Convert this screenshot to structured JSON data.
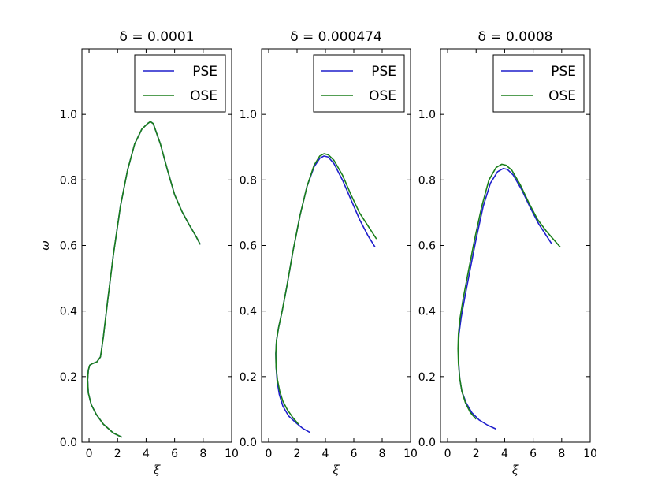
{
  "chart_data": [
    {
      "type": "line",
      "title": "δ = 0.0001",
      "xlabel": "ξ",
      "ylabel": "ω",
      "xlim": [
        -0.5,
        10
      ],
      "ylim": [
        0,
        1.2
      ],
      "xticks": [
        0,
        2,
        4,
        6,
        8,
        10
      ],
      "yticks": [
        0.0,
        0.2,
        0.4,
        0.6,
        0.8,
        1.0
      ],
      "xtick_labels": [
        "0",
        "2",
        "4",
        "6",
        "8",
        "10"
      ],
      "ytick_labels": [
        "0.0",
        "0.2",
        "0.4",
        "0.6",
        "0.8",
        "1.0"
      ],
      "legend": "top-right",
      "series": [
        {
          "name": "PSE",
          "color": "#1f1fcc",
          "x": [
            2.3,
            1.7,
            1.0,
            0.5,
            0.15,
            -0.05,
            -0.1,
            -0.05,
            0.05,
            0.25,
            0.55,
            0.8,
            1.0,
            1.3,
            1.7,
            2.2,
            2.7,
            3.2,
            3.7,
            4.1,
            4.3,
            4.5,
            5.0,
            5.5,
            6.0,
            6.5,
            7.0,
            7.5,
            7.8
          ],
          "y": [
            0.015,
            0.028,
            0.055,
            0.085,
            0.115,
            0.15,
            0.19,
            0.22,
            0.235,
            0.24,
            0.245,
            0.26,
            0.32,
            0.43,
            0.57,
            0.72,
            0.83,
            0.91,
            0.955,
            0.972,
            0.978,
            0.972,
            0.91,
            0.83,
            0.755,
            0.705,
            0.665,
            0.628,
            0.603
          ]
        },
        {
          "name": "OSE",
          "color": "#1a7f1a",
          "x": [
            2.3,
            1.7,
            1.0,
            0.5,
            0.15,
            -0.05,
            -0.1,
            -0.05,
            0.05,
            0.25,
            0.55,
            0.8,
            1.0,
            1.3,
            1.7,
            2.2,
            2.7,
            3.2,
            3.7,
            4.1,
            4.3,
            4.5,
            5.0,
            5.5,
            6.0,
            6.5,
            7.0,
            7.5,
            7.8
          ],
          "y": [
            0.015,
            0.028,
            0.055,
            0.085,
            0.115,
            0.15,
            0.19,
            0.22,
            0.235,
            0.24,
            0.245,
            0.26,
            0.32,
            0.43,
            0.57,
            0.72,
            0.83,
            0.91,
            0.955,
            0.972,
            0.978,
            0.972,
            0.91,
            0.83,
            0.755,
            0.705,
            0.665,
            0.628,
            0.603
          ]
        }
      ]
    },
    {
      "type": "line",
      "title": "δ = 0.000474",
      "xlabel": "ξ",
      "ylabel": "",
      "xlim": [
        -0.5,
        10
      ],
      "ylim": [
        0,
        1.2
      ],
      "xticks": [
        0,
        2,
        4,
        6,
        8,
        10
      ],
      "yticks": [
        0.0,
        0.2,
        0.4,
        0.6,
        0.8,
        1.0
      ],
      "xtick_labels": [
        "0",
        "2",
        "4",
        "6",
        "8",
        "10"
      ],
      "ytick_labels": [
        "0.0",
        "0.2",
        "0.4",
        "0.6",
        "0.8",
        "1.0"
      ],
      "legend": "top-right",
      "series": [
        {
          "name": "PSE",
          "color": "#1f1fcc",
          "x": [
            2.9,
            2.4,
            1.9,
            1.4,
            1.0,
            0.75,
            0.6,
            0.52,
            0.5,
            0.55,
            0.7,
            0.95,
            1.3,
            1.7,
            2.2,
            2.7,
            3.2,
            3.6,
            3.9,
            4.2,
            4.6,
            5.2,
            5.8,
            6.4,
            7.0,
            7.5
          ],
          "y": [
            0.03,
            0.042,
            0.06,
            0.08,
            0.11,
            0.145,
            0.185,
            0.23,
            0.27,
            0.31,
            0.35,
            0.4,
            0.48,
            0.58,
            0.69,
            0.78,
            0.84,
            0.866,
            0.873,
            0.87,
            0.85,
            0.8,
            0.74,
            0.68,
            0.63,
            0.595
          ]
        },
        {
          "name": "OSE",
          "color": "#1a7f1a",
          "x": [
            2.1,
            1.7,
            1.3,
            1.0,
            0.78,
            0.62,
            0.52,
            0.5,
            0.55,
            0.7,
            0.95,
            1.3,
            1.7,
            2.2,
            2.7,
            3.2,
            3.6,
            3.9,
            4.2,
            4.6,
            5.2,
            5.8,
            6.4,
            7.0,
            7.6
          ],
          "y": [
            0.055,
            0.075,
            0.1,
            0.125,
            0.155,
            0.19,
            0.23,
            0.27,
            0.31,
            0.35,
            0.4,
            0.48,
            0.58,
            0.69,
            0.78,
            0.845,
            0.873,
            0.88,
            0.877,
            0.86,
            0.815,
            0.755,
            0.7,
            0.66,
            0.62
          ]
        }
      ]
    },
    {
      "type": "line",
      "title": "δ = 0.0008",
      "xlabel": "ξ",
      "ylabel": "",
      "xlim": [
        -0.5,
        10
      ],
      "ylim": [
        0,
        1.2
      ],
      "xticks": [
        0,
        2,
        4,
        6,
        8,
        10
      ],
      "yticks": [
        0.0,
        0.2,
        0.4,
        0.6,
        0.8,
        1.0
      ],
      "xtick_labels": [
        "0",
        "2",
        "4",
        "6",
        "8",
        "10"
      ],
      "ytick_labels": [
        "0.0",
        "0.2",
        "0.4",
        "0.6",
        "0.8",
        "1.0"
      ],
      "legend": "top-right",
      "series": [
        {
          "name": "PSE",
          "color": "#1f1fcc",
          "x": [
            3.4,
            2.8,
            2.2,
            1.7,
            1.3,
            1.0,
            0.85,
            0.78,
            0.75,
            0.8,
            0.95,
            1.2,
            1.55,
            2.0,
            2.5,
            3.0,
            3.5,
            3.9,
            4.2,
            4.6,
            5.2,
            5.8,
            6.4,
            7.0,
            7.3
          ],
          "y": [
            0.04,
            0.052,
            0.068,
            0.09,
            0.12,
            0.155,
            0.195,
            0.24,
            0.285,
            0.33,
            0.38,
            0.44,
            0.52,
            0.62,
            0.72,
            0.79,
            0.825,
            0.835,
            0.832,
            0.815,
            0.77,
            0.715,
            0.665,
            0.625,
            0.605
          ]
        },
        {
          "name": "OSE",
          "color": "#1a7f1a",
          "x": [
            2.0,
            1.6,
            1.25,
            1.0,
            0.85,
            0.76,
            0.73,
            0.76,
            0.88,
            1.1,
            1.45,
            1.9,
            2.4,
            2.9,
            3.4,
            3.8,
            4.1,
            4.5,
            5.1,
            5.7,
            6.3,
            6.9,
            7.5,
            7.9
          ],
          "y": [
            0.07,
            0.09,
            0.12,
            0.155,
            0.195,
            0.24,
            0.285,
            0.33,
            0.38,
            0.44,
            0.52,
            0.62,
            0.72,
            0.8,
            0.838,
            0.848,
            0.845,
            0.83,
            0.785,
            0.73,
            0.68,
            0.645,
            0.615,
            0.595
          ]
        }
      ]
    }
  ]
}
